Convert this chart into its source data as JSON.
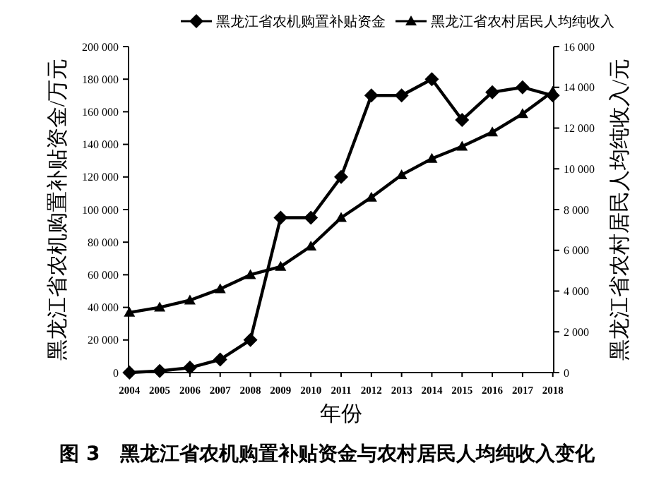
{
  "chart_data": {
    "type": "line",
    "categories": [
      "2004",
      "2005",
      "2006",
      "2007",
      "2008",
      "2009",
      "2010",
      "2011",
      "2012",
      "2013",
      "2014",
      "2015",
      "2016",
      "2017",
      "2018"
    ],
    "series": [
      {
        "name": "黑龙江省农机购置补贴资金",
        "color": "#000000",
        "marker": "diamond",
        "values": [
          0,
          1000,
          3000,
          8000,
          20000,
          95000,
          95000,
          120000,
          170000,
          170000,
          180000,
          155000,
          172000,
          175000,
          170000
        ]
      },
      {
        "name": "黑龙江省农村居民人均纯收入",
        "color": "#000000",
        "marker": "triangle",
        "axis": "y2",
        "values": [
          2950,
          3200,
          3550,
          4100,
          4800,
          5200,
          6200,
          7600,
          8600,
          9700,
          10500,
          11100,
          11800,
          12700,
          13800
        ]
      }
    ],
    "xlabel": "年份",
    "ylabel": "黑龙江省农机购置补贴资金/万元",
    "y2label": "黑龙江省农村居民人均纯收入/元",
    "ylim": [
      0,
      200000
    ],
    "yticks": [
      0,
      {
        "value": 20000,
        "label": "20 000"
      },
      {
        "value": 40000,
        "label": "40 000"
      },
      {
        "value": 60000,
        "label": "60 000"
      },
      {
        "value": 80000,
        "label": "80 000"
      },
      {
        "value": 100000,
        "label": "100 000"
      },
      {
        "value": 120000,
        "label": "120 000"
      },
      {
        "value": 140000,
        "label": "140 000"
      },
      {
        "value": 160000,
        "label": "160 000"
      },
      {
        "value": 180000,
        "label": "180 000"
      },
      {
        "value": 200000,
        "label": "200 000"
      }
    ],
    "y2lim": [
      0,
      16000
    ],
    "y2ticks": [
      0,
      {
        "value": 2000,
        "label": "2 000"
      },
      {
        "value": 4000,
        "label": "4 000"
      },
      {
        "value": 6000,
        "label": "6 000"
      },
      {
        "value": 8000,
        "label": "8 000"
      },
      {
        "value": 10000,
        "label": "10 000"
      },
      {
        "value": 12000,
        "label": "12 000"
      },
      {
        "value": 14000,
        "label": "14 000"
      },
      {
        "value": 16000,
        "label": "16 000"
      }
    ],
    "legend": "top",
    "grid": false,
    "annotations": [
      "图 3　黑龙江省农机购置补贴资金与农村居民人均纯收入变化"
    ]
  }
}
